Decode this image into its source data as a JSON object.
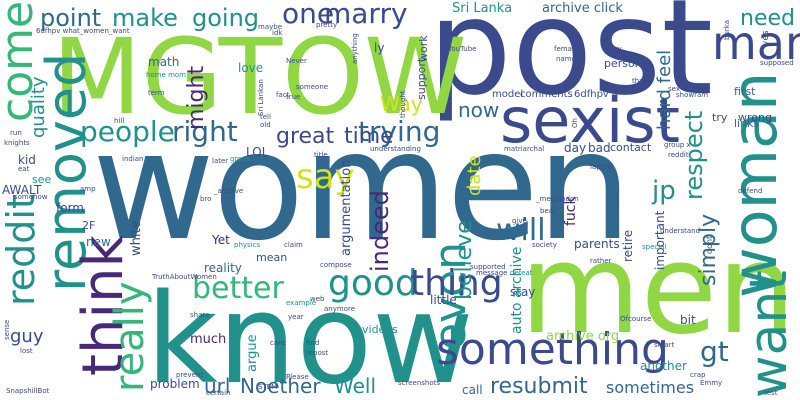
{
  "palette": {
    "navy": "#3b4a8c",
    "indigo": "#482878",
    "blue": "#31688e",
    "teal": "#21918c",
    "green": "#35b779",
    "lime": "#90d743",
    "yellow": "#d2e21b"
  },
  "words": {
    "women": "women",
    "post": "post",
    "mgtow": "MGTOW",
    "know": "know",
    "men": "men",
    "sexist": "sexist",
    "woman": "woman",
    "removed": "removed",
    "think": "think",
    "something": "something",
    "want": "want",
    "man": "man",
    "come": "come",
    "reddit": "reddit",
    "good": "good",
    "thing": "thing",
    "even": "even",
    "people": "people",
    "right": "right",
    "trying": "trying",
    "really": "really",
    "better": "better",
    "one": "one",
    "marry": "marry",
    "point": "point",
    "make": "make",
    "going": "going",
    "say": "say",
    "will": "will",
    "gt": "gt",
    "jp": "jp",
    "need": "need",
    "respect": "respect",
    "simply": "simply",
    "great": "great",
    "time": "time",
    "indeed": "indeed",
    "believe": "believe",
    "resubmit": "resubmit",
    "url": "url",
    "noether": "Noether",
    "well": "Well",
    "sometimes": "sometimes",
    "now": "now",
    "way": "Way",
    "might": "might",
    "quality": "quality",
    "guy": "guy",
    "hard_feel": "hard feel",
    "sri_lanka": "Sri Lanka",
    "archive_click": "archive click",
    "archive_org": "archive org",
    "date": "date",
    "auto_archive": "auto archive",
    "much": "much",
    "argumentation": "argumentation",
    "math": "math",
    "love": "love",
    "model": "model",
    "comments": "comments",
    "sixdfhpv": "6dfhpv",
    "form": "form",
    "kid": "kid",
    "awalt": "AWALT",
    "see": "see",
    "new": "new",
    "white": "white",
    "reality": "reality",
    "mean": "mean",
    "yet": "Yet",
    "lol": "LOL",
    "fuck": "fuck",
    "stay": "stay",
    "little": "little",
    "videos": "videos",
    "parents": "parents",
    "retire": "retire",
    "important": "important",
    "bit": "bit",
    "another": "another",
    "call": "call",
    "problem": "problem",
    "argue": "argue",
    "first": "first",
    "wrong": "wrong",
    "try": "try",
    "links": "links",
    "day": "day",
    "bad": "bad",
    "contact": "contact",
    "person": "person",
    "ly": "ly",
    "support": "support",
    "work": "work",
    "two_f": "2F",
    "yes": "yes",
    "group": "group",
    "dont": "dont",
    "indian": "indian",
    "bro": "bro",
    "home_mom": "home mom",
    "old": "old",
    "tell": "tell",
    "hill": "hill",
    "physics": "physics",
    "claim": "claim",
    "example": "example",
    "share": "share",
    "year": "year",
    "screenshots": "screenshots",
    "supported": "supported",
    "defeat": "defeat",
    "society": "society",
    "special": "special",
    "message": "message",
    "give": "give",
    "bear": "bear",
    "understand": "understand",
    "rather": "rather",
    "smart": "smart",
    "crap": "crap",
    "emmy": "Emmy",
    "test": "test",
    "ofcourse": "Ofcourse",
    "snapshillbot": "SnapshillBot",
    "lost": "lost",
    "sense": "sense",
    "knights": "knights",
    "run": "run",
    "eat": "eat",
    "somehow": "somehow",
    "amp": "amp",
    "certain": "certain",
    "please": "Please",
    "prevent": "prevent",
    "care": "care",
    "find": "find",
    "repost": "repost",
    "web": "web",
    "anymore": "anymore",
    "compose": "compose",
    "truth_about_women": "TruthAboutWomen",
    "title": "title",
    "understanding": "understanding",
    "matriarchal": "matriarchal",
    "laptop": "laptop",
    "reddit_small": "reddit",
    "defend": "defend",
    "female": "female",
    "named": "named",
    "every": "every",
    "thank": "thank",
    "sex": "sex",
    "supposed": "supposed",
    "showram": "showram",
    "burka": "burka",
    "youtube": "YouTube",
    "pretty": "pretty",
    "anything": "anything",
    "never": "Never",
    "someone": "someone",
    "true": "true",
    "fact": "fact",
    "sri_lankan": "Sri Lankan",
    "idk": "idk",
    "sixdfhpv_what": "6dfhpv what_women_want",
    "archive_under": "_archive",
    "megalodon": "_megalodon",
    "term": "term",
    "later": "later",
    "thought": "thought",
    "group_x": "group x",
    "oh": "Oh",
    "maybe": "maybe",
    "stem": "STEM"
  }
}
